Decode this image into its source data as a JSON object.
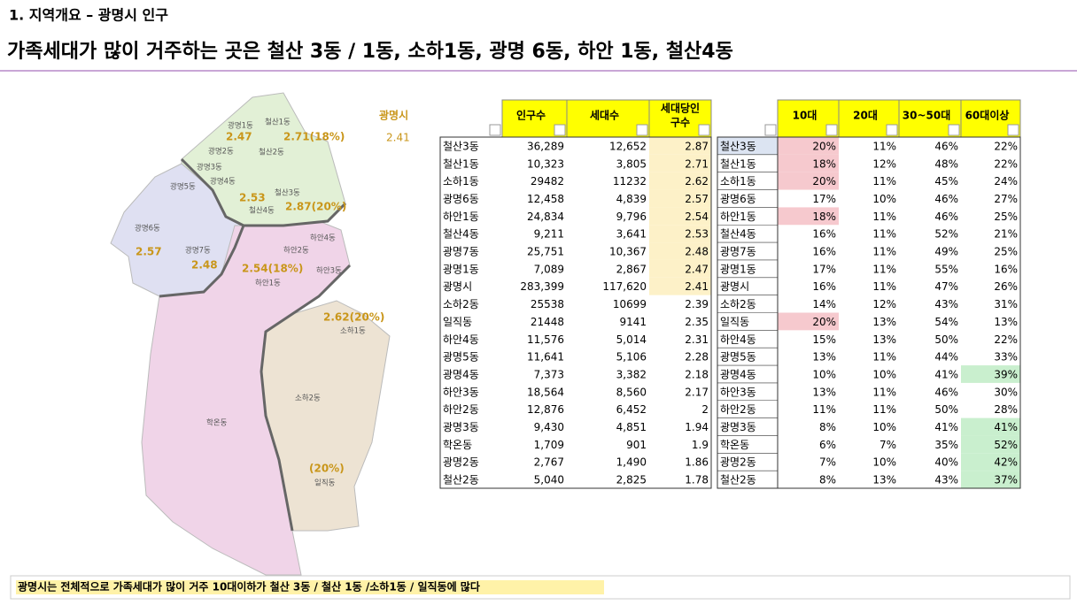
{
  "header": {
    "section": "1. 지역개요 – 광명시 인구",
    "title": "가족세대가 많이 거주하는 곳은 철산 3동 / 1동, 소하1동, 광명 6동, 하안 1동, 철산4동"
  },
  "map": {
    "city_label": "광명시",
    "city_value": "2.41",
    "labels": [
      "철산1동",
      "광명1동",
      "2.47",
      "2.71(18%)",
      "광명2동",
      "철산2동",
      "광명3동",
      "광명4동",
      "광명5동",
      "철산3동",
      "2.53",
      "철산4동",
      "2.87(20%)",
      "광명6동",
      "2.57",
      "광명7동",
      "2.48",
      "하안4동",
      "하안2동",
      "2.54(18%)",
      "하안3동",
      "하안1동",
      "2.62(20%)",
      "소하1동",
      "소하2동",
      "학온동",
      "(20%)",
      "일직동"
    ]
  },
  "table1": {
    "headers": [
      "인구수",
      "세대수",
      [
        "세대당인",
        "구수"
      ]
    ],
    "rows": [
      [
        "철산3동",
        "36,289",
        "12,652",
        "2.87"
      ],
      [
        "철산1동",
        "10,323",
        "3,805",
        "2.71"
      ],
      [
        "소하1동",
        "29482",
        "11232",
        "2.62"
      ],
      [
        "광명6동",
        "12,458",
        "4,839",
        "2.57"
      ],
      [
        "하안1동",
        "24,834",
        "9,796",
        "2.54"
      ],
      [
        "철산4동",
        "9,211",
        "3,641",
        "2.53"
      ],
      [
        "광명7동",
        "25,751",
        "10,367",
        "2.48"
      ],
      [
        "광명1동",
        "7,089",
        "2,867",
        "2.47"
      ],
      [
        "광명시",
        "283,399",
        "117,620",
        "2.41"
      ],
      [
        "소하2동",
        "25538",
        "10699",
        "2.39"
      ],
      [
        "일직동",
        "21448",
        "9141",
        "2.35"
      ],
      [
        "하안4동",
        "11,576",
        "5,014",
        "2.31"
      ],
      [
        "광명5동",
        "11,641",
        "5,106",
        "2.28"
      ],
      [
        "광명4동",
        "7,373",
        "3,382",
        "2.18"
      ],
      [
        "하안3동",
        "18,564",
        "8,560",
        "2.17"
      ],
      [
        "하안2동",
        "12,876",
        "6,452",
        "2"
      ],
      [
        "광명3동",
        "9,430",
        "4,851",
        "1.94"
      ],
      [
        "학온동",
        "1,709",
        "901",
        "1.9"
      ],
      [
        "광명2동",
        "2,767",
        "1,490",
        "1.86"
      ],
      [
        "철산2동",
        "5,040",
        "2,825",
        "1.78"
      ]
    ]
  },
  "table2": {
    "headers": [
      "10대",
      "20대",
      "30~50대",
      "60대이상"
    ],
    "rows": [
      [
        "철산3동",
        "20%",
        "11%",
        "46%",
        "22%"
      ],
      [
        "철산1동",
        "18%",
        "12%",
        "48%",
        "22%"
      ],
      [
        "소하1동",
        "20%",
        "11%",
        "45%",
        "24%"
      ],
      [
        "광명6동",
        "17%",
        "10%",
        "46%",
        "27%"
      ],
      [
        "하안1동",
        "18%",
        "11%",
        "46%",
        "25%"
      ],
      [
        "철산4동",
        "16%",
        "11%",
        "52%",
        "21%"
      ],
      [
        "광명7동",
        "16%",
        "11%",
        "49%",
        "25%"
      ],
      [
        "광명1동",
        "17%",
        "11%",
        "55%",
        "16%"
      ],
      [
        "광명시",
        "16%",
        "11%",
        "47%",
        "26%"
      ],
      [
        "소하2동",
        "14%",
        "12%",
        "43%",
        "31%"
      ],
      [
        "일직동",
        "20%",
        "13%",
        "54%",
        "13%"
      ],
      [
        "하안4동",
        "15%",
        "13%",
        "50%",
        "22%"
      ],
      [
        "광명5동",
        "13%",
        "11%",
        "44%",
        "33%"
      ],
      [
        "광명4동",
        "10%",
        "10%",
        "41%",
        "39%"
      ],
      [
        "하안3동",
        "13%",
        "11%",
        "46%",
        "30%"
      ],
      [
        "하안2동",
        "11%",
        "11%",
        "50%",
        "28%"
      ],
      [
        "광명3동",
        "8%",
        "10%",
        "41%",
        "41%"
      ],
      [
        "학온동",
        "6%",
        "7%",
        "35%",
        "52%"
      ],
      [
        "광명2동",
        "7%",
        "10%",
        "40%",
        "42%"
      ],
      [
        "철산2동",
        "8%",
        "13%",
        "43%",
        "37%"
      ]
    ]
  },
  "footer": "광명시는 전체적으로 가족세대가 많이 거주 10대이하가 철산 3동 / 철산 1동 /소하1동 / 일직동에 많다"
}
